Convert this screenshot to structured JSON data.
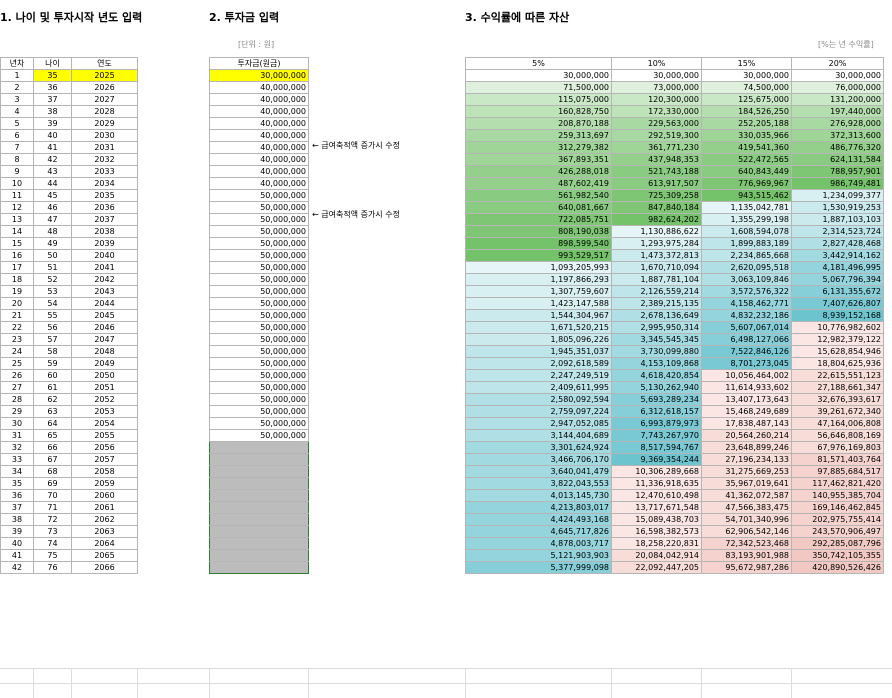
{
  "titles": {
    "s1": "1. 나이 및 투자시작 년도 입력",
    "s2": "2. 투자금 입력",
    "s3": "3. 수익률에 따른 자산"
  },
  "notes": {
    "unit": "[단위 : 원]",
    "rate": "[%는 년 수익률]"
  },
  "annotations": {
    "a1": "← 급여축적액 증가시 수정",
    "a2": "← 급여축적액 증가시 수정"
  },
  "headers": {
    "year_no": "년차",
    "age": "나이",
    "year": "연도",
    "principal": "투자금(원금)",
    "r5": "5%",
    "r10": "10%",
    "r15": "15%",
    "r20": "20%"
  },
  "colors": {
    "input_highlight": "#ffff00",
    "green_scale": [
      "#ffffff",
      "#f4fbf3",
      "#e9f6e7",
      "#dff1dc",
      "#d4ecd0",
      "#c9e8c5",
      "#bfe3b9",
      "#b4deae",
      "#a9d9a2",
      "#9fd597",
      "#94d08b",
      "#89cb80",
      "#7fc674",
      "#74c269"
    ],
    "cyan_scale": [
      "#e6f5f7",
      "#d9f0f3",
      "#cbeaee",
      "#bde5ea",
      "#b0dfe6",
      "#a2dae1",
      "#94d4dd",
      "#87cfd8",
      "#79c9d4",
      "#6cc4cf"
    ],
    "red_scale": [
      "#fbe6e3",
      "#f8dcd8",
      "#f5d2cd",
      "#f2c8c2"
    ]
  },
  "rows": [
    {
      "n": "1",
      "age": "35",
      "year": "2025",
      "p": "30,000,000",
      "r5": "30,000,000",
      "r10": "30,000,000",
      "r15": "30,000,000",
      "r20": "30,000,000"
    },
    {
      "n": "2",
      "age": "36",
      "year": "2026",
      "p": "40,000,000",
      "r5": "71,500,000",
      "r10": "73,000,000",
      "r15": "74,500,000",
      "r20": "76,000,000"
    },
    {
      "n": "3",
      "age": "37",
      "year": "2027",
      "p": "40,000,000",
      "r5": "115,075,000",
      "r10": "120,300,000",
      "r15": "125,675,000",
      "r20": "131,200,000"
    },
    {
      "n": "4",
      "age": "38",
      "year": "2028",
      "p": "40,000,000",
      "r5": "160,828,750",
      "r10": "172,330,000",
      "r15": "184,526,250",
      "r20": "197,440,000"
    },
    {
      "n": "5",
      "age": "39",
      "year": "2029",
      "p": "40,000,000",
      "r5": "208,870,188",
      "r10": "229,563,000",
      "r15": "252,205,188",
      "r20": "276,928,000"
    },
    {
      "n": "6",
      "age": "40",
      "year": "2030",
      "p": "40,000,000",
      "r5": "259,313,697",
      "r10": "292,519,300",
      "r15": "330,035,966",
      "r20": "372,313,600"
    },
    {
      "n": "7",
      "age": "41",
      "year": "2031",
      "p": "40,000,000",
      "r5": "312,279,382",
      "r10": "361,771,230",
      "r15": "419,541,360",
      "r20": "486,776,320"
    },
    {
      "n": "8",
      "age": "42",
      "year": "2032",
      "p": "40,000,000",
      "r5": "367,893,351",
      "r10": "437,948,353",
      "r15": "522,472,565",
      "r20": "624,131,584"
    },
    {
      "n": "9",
      "age": "43",
      "year": "2033",
      "p": "40,000,000",
      "r5": "426,288,018",
      "r10": "521,743,188",
      "r15": "640,843,449",
      "r20": "788,957,901"
    },
    {
      "n": "10",
      "age": "44",
      "year": "2034",
      "p": "40,000,000",
      "r5": "487,602,419",
      "r10": "613,917,507",
      "r15": "776,969,967",
      "r20": "986,749,481"
    },
    {
      "n": "11",
      "age": "45",
      "year": "2035",
      "p": "50,000,000",
      "r5": "561,982,540",
      "r10": "725,309,258",
      "r15": "943,515,462",
      "r20": "1,234,099,377"
    },
    {
      "n": "12",
      "age": "46",
      "year": "2036",
      "p": "50,000,000",
      "r5": "640,081,667",
      "r10": "847,840,184",
      "r15": "1,135,042,781",
      "r20": "1,530,919,253"
    },
    {
      "n": "13",
      "age": "47",
      "year": "2037",
      "p": "50,000,000",
      "r5": "722,085,751",
      "r10": "982,624,202",
      "r15": "1,355,299,198",
      "r20": "1,887,103,103"
    },
    {
      "n": "14",
      "age": "48",
      "year": "2038",
      "p": "50,000,000",
      "r5": "808,190,038",
      "r10": "1,130,886,622",
      "r15": "1,608,594,078",
      "r20": "2,314,523,724"
    },
    {
      "n": "15",
      "age": "49",
      "year": "2039",
      "p": "50,000,000",
      "r5": "898,599,540",
      "r10": "1,293,975,284",
      "r15": "1,899,883,189",
      "r20": "2,827,428,468"
    },
    {
      "n": "16",
      "age": "50",
      "year": "2040",
      "p": "50,000,000",
      "r5": "993,529,517",
      "r10": "1,473,372,813",
      "r15": "2,234,865,668",
      "r20": "3,442,914,162"
    },
    {
      "n": "17",
      "age": "51",
      "year": "2041",
      "p": "50,000,000",
      "r5": "1,093,205,993",
      "r10": "1,670,710,094",
      "r15": "2,620,095,518",
      "r20": "4,181,496,995"
    },
    {
      "n": "18",
      "age": "52",
      "year": "2042",
      "p": "50,000,000",
      "r5": "1,197,866,293",
      "r10": "1,887,781,104",
      "r15": "3,063,109,846",
      "r20": "5,067,796,394"
    },
    {
      "n": "19",
      "age": "53",
      "year": "2043",
      "p": "50,000,000",
      "r5": "1,307,759,607",
      "r10": "2,126,559,214",
      "r15": "3,572,576,322",
      "r20": "6,131,355,672"
    },
    {
      "n": "20",
      "age": "54",
      "year": "2044",
      "p": "50,000,000",
      "r5": "1,423,147,588",
      "r10": "2,389,215,135",
      "r15": "4,158,462,771",
      "r20": "7,407,626,807"
    },
    {
      "n": "21",
      "age": "55",
      "year": "2045",
      "p": "50,000,000",
      "r5": "1,544,304,967",
      "r10": "2,678,136,649",
      "r15": "4,832,232,186",
      "r20": "8,939,152,168"
    },
    {
      "n": "22",
      "age": "56",
      "year": "2046",
      "p": "50,000,000",
      "r5": "1,671,520,215",
      "r10": "2,995,950,314",
      "r15": "5,607,067,014",
      "r20": "10,776,982,602"
    },
    {
      "n": "23",
      "age": "57",
      "year": "2047",
      "p": "50,000,000",
      "r5": "1,805,096,226",
      "r10": "3,345,545,345",
      "r15": "6,498,127,066",
      "r20": "12,982,379,122"
    },
    {
      "n": "24",
      "age": "58",
      "year": "2048",
      "p": "50,000,000",
      "r5": "1,945,351,037",
      "r10": "3,730,099,880",
      "r15": "7,522,846,126",
      "r20": "15,628,854,946"
    },
    {
      "n": "25",
      "age": "59",
      "year": "2049",
      "p": "50,000,000",
      "r5": "2,092,618,589",
      "r10": "4,153,109,868",
      "r15": "8,701,273,045",
      "r20": "18,804,625,936"
    },
    {
      "n": "26",
      "age": "60",
      "year": "2050",
      "p": "50,000,000",
      "r5": "2,247,249,519",
      "r10": "4,618,420,854",
      "r15": "10,056,464,002",
      "r20": "22,615,551,123"
    },
    {
      "n": "27",
      "age": "61",
      "year": "2051",
      "p": "50,000,000",
      "r5": "2,409,611,995",
      "r10": "5,130,262,940",
      "r15": "11,614,933,602",
      "r20": "27,188,661,347"
    },
    {
      "n": "28",
      "age": "62",
      "year": "2052",
      "p": "50,000,000",
      "r5": "2,580,092,594",
      "r10": "5,693,289,234",
      "r15": "13,407,173,643",
      "r20": "32,676,393,617"
    },
    {
      "n": "29",
      "age": "63",
      "year": "2053",
      "p": "50,000,000",
      "r5": "2,759,097,224",
      "r10": "6,312,618,157",
      "r15": "15,468,249,689",
      "r20": "39,261,672,340"
    },
    {
      "n": "30",
      "age": "64",
      "year": "2054",
      "p": "50,000,000",
      "r5": "2,947,052,085",
      "r10": "6,993,879,973",
      "r15": "17,838,487,143",
      "r20": "47,164,006,808"
    },
    {
      "n": "31",
      "age": "65",
      "year": "2055",
      "p": "50,000,000",
      "r5": "3,144,404,689",
      "r10": "7,743,267,970",
      "r15": "20,564,260,214",
      "r20": "56,646,808,169"
    },
    {
      "n": "32",
      "age": "66",
      "year": "2056",
      "p": "",
      "r5": "3,301,624,924",
      "r10": "8,517,594,767",
      "r15": "23,648,899,246",
      "r20": "67,976,169,803"
    },
    {
      "n": "33",
      "age": "67",
      "year": "2057",
      "p": "",
      "r5": "3,466,706,170",
      "r10": "9,369,354,244",
      "r15": "27,196,234,133",
      "r20": "81,571,403,764"
    },
    {
      "n": "34",
      "age": "68",
      "year": "2058",
      "p": "",
      "r5": "3,640,041,479",
      "r10": "10,306,289,668",
      "r15": "31,275,669,253",
      "r20": "97,885,684,517"
    },
    {
      "n": "35",
      "age": "69",
      "year": "2059",
      "p": "",
      "r5": "3,822,043,553",
      "r10": "11,336,918,635",
      "r15": "35,967,019,641",
      "r20": "117,462,821,420"
    },
    {
      "n": "36",
      "age": "70",
      "year": "2060",
      "p": "",
      "r5": "4,013,145,730",
      "r10": "12,470,610,498",
      "r15": "41,362,072,587",
      "r20": "140,955,385,704"
    },
    {
      "n": "37",
      "age": "71",
      "year": "2061",
      "p": "",
      "r5": "4,213,803,017",
      "r10": "13,717,671,548",
      "r15": "47,566,383,475",
      "r20": "169,146,462,845"
    },
    {
      "n": "38",
      "age": "72",
      "year": "2062",
      "p": "",
      "r5": "4,424,493,168",
      "r10": "15,089,438,703",
      "r15": "54,701,340,996",
      "r20": "202,975,755,414"
    },
    {
      "n": "39",
      "age": "73",
      "year": "2063",
      "p": "",
      "r5": "4,645,717,826",
      "r10": "16,598,382,573",
      "r15": "62,906,542,146",
      "r20": "243,570,906,497"
    },
    {
      "n": "40",
      "age": "74",
      "year": "2064",
      "p": "",
      "r5": "4,878,003,717",
      "r10": "18,258,220,831",
      "r15": "72,342,523,468",
      "r20": "292,285,087,796"
    },
    {
      "n": "41",
      "age": "75",
      "year": "2065",
      "p": "",
      "r5": "5,121,903,903",
      "r10": "20,084,042,914",
      "r15": "83,193,901,988",
      "r20": "350,742,105,355"
    },
    {
      "n": "42",
      "age": "76",
      "year": "2066",
      "p": "",
      "r5": "5,377,999,098",
      "r10": "22,092,447,205",
      "r15": "95,672,987,286",
      "r20": "420,890,526,426"
    }
  ]
}
